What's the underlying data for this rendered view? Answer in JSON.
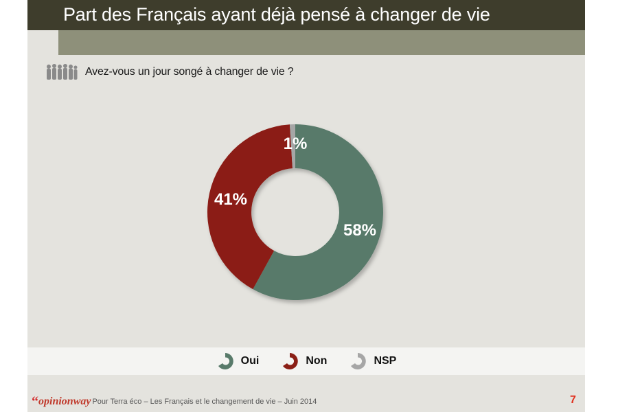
{
  "header": {
    "title": "Part des Français ayant déjà pensé à changer de vie"
  },
  "question": {
    "icon": "people-group-icon",
    "text": "Avez-vous un jour songé à changer de vie ?"
  },
  "chart_data": {
    "type": "pie",
    "variant": "donut",
    "title": "",
    "start": "top",
    "direction": "clockwise",
    "slices": [
      {
        "label": "Oui",
        "value": 58,
        "display": "58%",
        "color": "#587a6a"
      },
      {
        "label": "Non",
        "value": 41,
        "display": "41%",
        "color": "#8b1f16"
      },
      {
        "label": "NSP",
        "value": 1,
        "display": "1%",
        "color": "#a6a6a6"
      }
    ],
    "legend_position": "bottom"
  },
  "legend": {
    "items": [
      {
        "label": "Oui",
        "color": "#587a6a"
      },
      {
        "label": "Non",
        "color": "#8b1f16"
      },
      {
        "label": "NSP",
        "color": "#a6a6a6"
      }
    ]
  },
  "footer": {
    "quote": "“",
    "brand": "opinionway",
    "caption": "Pour Terra éco – Les Français et le changement de vie – Juin 2014",
    "page_number": "7"
  }
}
